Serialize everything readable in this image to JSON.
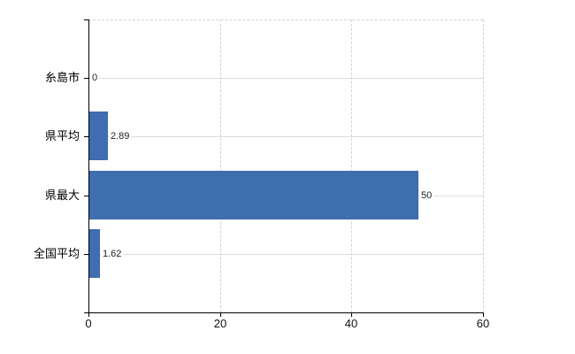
{
  "chart_data": {
    "type": "bar",
    "orientation": "horizontal",
    "title": "",
    "xlabel": "",
    "ylabel": "",
    "categories": [
      "糸島市",
      "県平均",
      "県最大",
      "全国平均"
    ],
    "values": [
      0,
      2.89,
      50,
      1.62
    ],
    "value_labels": [
      "0",
      "2.89",
      "50",
      "1.62"
    ],
    "xlim": [
      0,
      60
    ],
    "x_ticks": [
      0,
      20,
      40,
      60
    ],
    "x_tick_labels": [
      "0",
      "20",
      "40",
      "60"
    ],
    "grid": true,
    "legend": "none",
    "colors": {
      "bar": "#3e6db0",
      "axis": "#000000",
      "gridline_horizontal": "#d9ded9",
      "gridline_vertical": "#d2d2d2",
      "plot_border_dashed": "#d2d2d2",
      "value_text": "#222222",
      "label_text": "#000000",
      "background": "#ffffff"
    }
  }
}
